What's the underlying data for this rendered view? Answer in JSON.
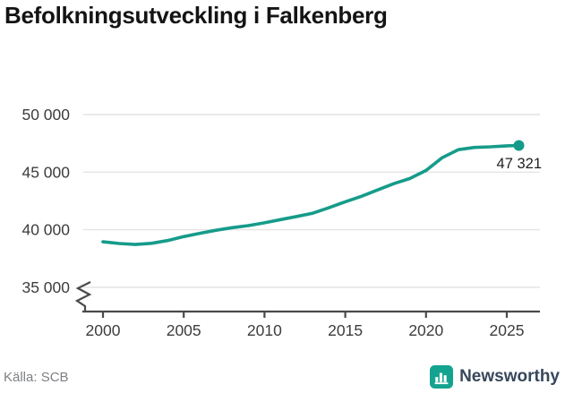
{
  "title": "Befolkningsutveckling i Falkenberg",
  "footer": {
    "source_label": "Källa: SCB",
    "brand": "Newsworthy"
  },
  "colors": {
    "line": "#169b8a",
    "dot": "#169b8a",
    "grid": "#e4e4e4",
    "axis": "#4a4a4a",
    "tick_text": "#3d3d3d",
    "title_text": "#141414",
    "end_label_text": "#1f1f1f",
    "source_text": "#7e8084",
    "brand_text": "#37475b",
    "brand_icon": "#14a38f"
  },
  "chart_data": {
    "type": "line",
    "title": "Befolkningsutveckling i Falkenberg",
    "x": [
      2000,
      2001,
      2002,
      2003,
      2004,
      2005,
      2006,
      2007,
      2008,
      2009,
      2010,
      2011,
      2012,
      2013,
      2014,
      2015,
      2016,
      2017,
      2018,
      2019,
      2020,
      2021,
      2022,
      2023,
      2024,
      2025,
      2025.75
    ],
    "series": [
      {
        "values": [
          38950,
          38800,
          38720,
          38820,
          39060,
          39400,
          39690,
          39950,
          40180,
          40360,
          40600,
          40880,
          41150,
          41440,
          41920,
          42430,
          42900,
          43450,
          44000,
          44450,
          45150,
          46250,
          46950,
          47150,
          47200,
          47290,
          47321
        ]
      }
    ],
    "end_value": 47321,
    "end_label": "47 321",
    "yticks": [
      35000,
      40000,
      45000,
      50000
    ],
    "ytick_labels": [
      "35 000",
      "40 000",
      "45 000",
      "50 000"
    ],
    "xticks": [
      2000,
      2005,
      2010,
      2015,
      2020,
      2025
    ],
    "xtick_labels": [
      "2000",
      "2005",
      "2010",
      "2015",
      "2020",
      "2025"
    ],
    "ylim": [
      35000,
      50000
    ],
    "axis_break": true,
    "grid": "horizontal",
    "legend": "none",
    "xlabel": "",
    "ylabel": ""
  }
}
